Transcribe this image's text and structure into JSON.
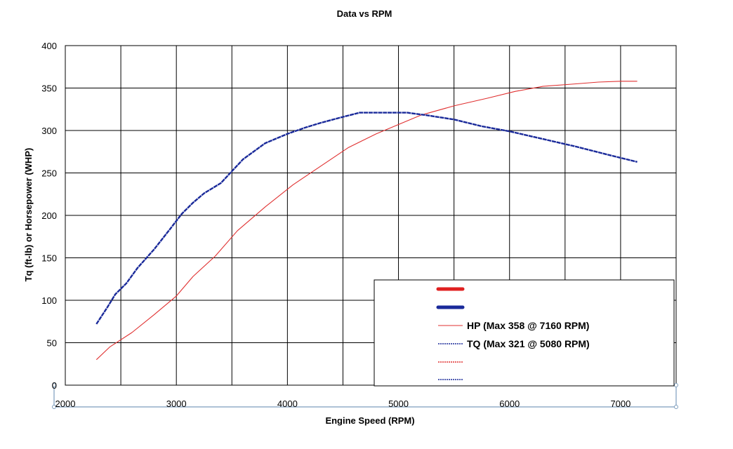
{
  "chart_data": {
    "type": "line",
    "title": "Data vs RPM",
    "xlabel": "Engine Speed (RPM)",
    "ylabel": "Tq (ft-lb) or Horsepower (WHP)",
    "xlim": [
      2000,
      7500
    ],
    "ylim": [
      0,
      400
    ],
    "xticks": [
      2000,
      3000,
      4000,
      5000,
      6000,
      7000
    ],
    "yticks": [
      0,
      50,
      100,
      150,
      200,
      250,
      300,
      350,
      400
    ],
    "grid": true,
    "legend_position": "bottom-right",
    "series": [
      {
        "name": "HP (Max 358 @ 7160 RPM)",
        "color": "#e03030",
        "style": "thin",
        "x": [
          2280,
          2400,
          2600,
          2800,
          3000,
          3150,
          3350,
          3550,
          3800,
          4050,
          4300,
          4550,
          4800,
          5000,
          5200,
          5500,
          5800,
          6050,
          6300,
          6600,
          6800,
          7000,
          7150
        ],
        "y": [
          30,
          45,
          62,
          83,
          105,
          128,
          152,
          182,
          210,
          236,
          258,
          280,
          296,
          307,
          318,
          329,
          338,
          346,
          352,
          355,
          357,
          358,
          358
        ]
      },
      {
        "name": "TQ (Max 321 @ 5080 RPM)",
        "color": "#1a2a9a",
        "style": "thick",
        "x": [
          2280,
          2380,
          2450,
          2550,
          2650,
          2800,
          2950,
          3050,
          3150,
          3250,
          3400,
          3600,
          3800,
          4000,
          4150,
          4300,
          4500,
          4650,
          4850,
          5080,
          5250,
          5500,
          5750,
          6000,
          6300,
          6600,
          6900,
          7150
        ],
        "y": [
          72,
          92,
          107,
          120,
          138,
          160,
          185,
          202,
          215,
          226,
          238,
          266,
          285,
          296,
          303,
          309,
          316,
          321,
          321,
          321,
          318,
          313,
          305,
          299,
          290,
          281,
          271,
          263
        ]
      }
    ],
    "legend_entries": [
      {
        "label": "",
        "color": "#e02020",
        "style": "thick-solid"
      },
      {
        "label": "",
        "color": "#1a2a9a",
        "style": "thick-solid"
      },
      {
        "label": "HP (Max 358 @ 7160 RPM)",
        "color": "#e03030",
        "style": "thin-solid"
      },
      {
        "label": "TQ (Max 321 @ 5080 RPM)",
        "color": "#1a2a9a",
        "style": "thin-dotted"
      },
      {
        "label": "",
        "color": "#e03030",
        "style": "thin-dotted"
      },
      {
        "label": "",
        "color": "#1a2a9a",
        "style": "thin-dotted"
      }
    ]
  }
}
